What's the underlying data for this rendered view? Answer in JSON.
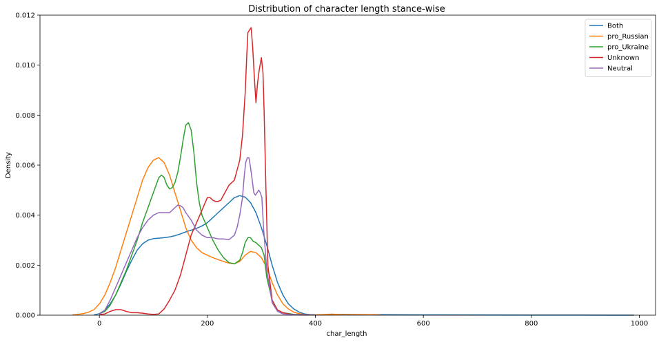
{
  "chart_data": {
    "type": "line",
    "title": "Distribution of character length stance-wise",
    "xlabel": "char_length",
    "ylabel": "Density",
    "xlim": [
      -110,
      1030
    ],
    "ylim": [
      0,
      0.012
    ],
    "xticks": [
      0,
      200,
      400,
      600,
      800,
      1000
    ],
    "xtick_labels": [
      "0",
      "200",
      "400",
      "600",
      "800",
      "1000"
    ],
    "yticks": [
      0,
      0.002,
      0.004,
      0.006,
      0.008,
      0.01,
      0.012
    ],
    "ytick_labels": [
      "0.000",
      "0.002",
      "0.004",
      "0.006",
      "0.008",
      "0.010",
      "0.012"
    ],
    "grid": false,
    "legend_position": "top-right",
    "series": [
      {
        "name": "Both",
        "color": "#1f77b4",
        "x": [
          -10,
          0,
          10,
          20,
          30,
          40,
          50,
          60,
          70,
          80,
          90,
          100,
          110,
          120,
          130,
          140,
          150,
          160,
          170,
          180,
          190,
          200,
          210,
          220,
          230,
          240,
          250,
          260,
          270,
          280,
          290,
          300,
          310,
          320,
          330,
          340,
          350,
          360,
          370,
          380,
          390,
          400,
          420,
          450,
          500,
          600,
          700,
          800,
          900,
          990
        ],
        "y": [
          1e-05,
          6e-05,
          0.0002,
          0.00045,
          0.0008,
          0.00125,
          0.00175,
          0.0022,
          0.0026,
          0.00285,
          0.003,
          0.00306,
          0.00308,
          0.0031,
          0.00313,
          0.00318,
          0.00325,
          0.00333,
          0.0034,
          0.00347,
          0.00357,
          0.0037,
          0.0039,
          0.0041,
          0.0043,
          0.0045,
          0.0047,
          0.00478,
          0.00472,
          0.0045,
          0.0041,
          0.0035,
          0.0028,
          0.002,
          0.0013,
          0.0008,
          0.00045,
          0.00025,
          0.00012,
          5e-05,
          2e-05,
          1e-05,
          2e-05,
          3e-05,
          2e-05,
          1e-05,
          5e-06,
          3e-06,
          2e-06,
          1e-06
        ]
      },
      {
        "name": "pro_Russian",
        "color": "#ff7f0e",
        "x": [
          -50,
          -40,
          -30,
          -20,
          -10,
          0,
          10,
          20,
          30,
          40,
          50,
          60,
          70,
          80,
          90,
          100,
          110,
          120,
          130,
          140,
          150,
          160,
          170,
          180,
          190,
          200,
          210,
          220,
          230,
          240,
          250,
          260,
          270,
          280,
          290,
          300,
          310,
          320,
          330,
          340,
          350,
          360,
          370,
          380,
          400,
          430,
          450,
          500,
          520
        ],
        "y": [
          1e-05,
          3e-05,
          6e-05,
          0.00012,
          0.00022,
          0.00045,
          0.0008,
          0.0013,
          0.0019,
          0.0026,
          0.0033,
          0.004,
          0.0047,
          0.0054,
          0.0059,
          0.0062,
          0.0063,
          0.0061,
          0.0056,
          0.0049,
          0.0042,
          0.0035,
          0.003,
          0.0027,
          0.0025,
          0.0024,
          0.0023,
          0.00222,
          0.00215,
          0.00208,
          0.00205,
          0.00215,
          0.0024,
          0.00255,
          0.0025,
          0.0023,
          0.0019,
          0.0013,
          0.0008,
          0.00045,
          0.00025,
          0.00012,
          6e-05,
          3e-05,
          1e-05,
          4e-05,
          2e-05,
          2e-05,
          1e-05
        ]
      },
      {
        "name": "pro_Ukraine",
        "color": "#2ca02c",
        "x": [
          0,
          10,
          20,
          30,
          40,
          50,
          60,
          70,
          80,
          90,
          100,
          110,
          115,
          120,
          125,
          130,
          135,
          140,
          145,
          150,
          155,
          160,
          165,
          170,
          175,
          180,
          185,
          190,
          200,
          210,
          220,
          230,
          240,
          250,
          260,
          265,
          270,
          275,
          280,
          285,
          290,
          295,
          300,
          305,
          310,
          320,
          330,
          340,
          360,
          400
        ],
        "y": [
          5e-05,
          0.00015,
          0.0004,
          0.0008,
          0.0013,
          0.0018,
          0.0024,
          0.003,
          0.0037,
          0.0043,
          0.0049,
          0.0055,
          0.0056,
          0.0055,
          0.0052,
          0.00505,
          0.0051,
          0.0053,
          0.0057,
          0.0063,
          0.007,
          0.0076,
          0.0077,
          0.0074,
          0.0065,
          0.0053,
          0.0045,
          0.004,
          0.0035,
          0.003,
          0.0026,
          0.0023,
          0.0021,
          0.00205,
          0.0022,
          0.0025,
          0.0029,
          0.0031,
          0.0031,
          0.00295,
          0.0029,
          0.0028,
          0.0027,
          0.0024,
          0.0015,
          0.0006,
          0.0002,
          0.0001,
          3e-05,
          1e-05
        ]
      },
      {
        "name": "Unknown",
        "color": "#d62728",
        "x": [
          0,
          10,
          20,
          30,
          40,
          50,
          60,
          70,
          80,
          90,
          100,
          110,
          120,
          130,
          140,
          150,
          160,
          170,
          180,
          190,
          200,
          205,
          210,
          215,
          220,
          225,
          230,
          240,
          250,
          255,
          260,
          265,
          270,
          273,
          275,
          278,
          281,
          284,
          287,
          290,
          293,
          296,
          300,
          303,
          305,
          308,
          312,
          320,
          330,
          340,
          350,
          360,
          380,
          400
        ],
        "y": [
          2e-05,
          5e-05,
          0.00015,
          0.00022,
          0.00022,
          0.00015,
          0.0001,
          0.0001,
          8e-05,
          5e-05,
          3e-05,
          5e-05,
          0.00025,
          0.0006,
          0.001,
          0.0016,
          0.0024,
          0.0032,
          0.0037,
          0.0042,
          0.0047,
          0.0047,
          0.0046,
          0.00455,
          0.00455,
          0.0046,
          0.0048,
          0.0052,
          0.0054,
          0.0058,
          0.0062,
          0.0072,
          0.0089,
          0.0104,
          0.0113,
          0.0114,
          0.0115,
          0.0107,
          0.0095,
          0.0085,
          0.0093,
          0.0098,
          0.0103,
          0.0097,
          0.0082,
          0.0055,
          0.002,
          0.0006,
          0.0002,
          0.0001,
          5e-05,
          2e-05,
          1e-05,
          5e-06
        ]
      },
      {
        "name": "Neutral",
        "color": "#9467bd",
        "x": [
          0,
          10,
          20,
          30,
          40,
          50,
          60,
          70,
          80,
          90,
          100,
          110,
          120,
          130,
          140,
          145,
          150,
          155,
          160,
          170,
          180,
          190,
          200,
          210,
          220,
          230,
          240,
          250,
          255,
          260,
          265,
          268,
          271,
          274,
          277,
          280,
          283,
          286,
          289,
          292,
          295,
          298,
          301,
          304,
          310,
          320,
          330,
          340,
          360,
          400
        ],
        "y": [
          4e-05,
          0.0002,
          0.0006,
          0.0011,
          0.0016,
          0.0021,
          0.0026,
          0.0031,
          0.0035,
          0.0038,
          0.004,
          0.0041,
          0.0041,
          0.0041,
          0.0043,
          0.0044,
          0.00438,
          0.0043,
          0.0041,
          0.0038,
          0.0034,
          0.0032,
          0.0031,
          0.0031,
          0.00305,
          0.00305,
          0.00302,
          0.0032,
          0.0035,
          0.004,
          0.0047,
          0.0055,
          0.0061,
          0.0063,
          0.0063,
          0.0059,
          0.0054,
          0.0049,
          0.0048,
          0.0049,
          0.005,
          0.0049,
          0.0047,
          0.0035,
          0.0018,
          0.0005,
          0.00015,
          5e-05,
          2e-05,
          1e-05
        ]
      }
    ]
  }
}
